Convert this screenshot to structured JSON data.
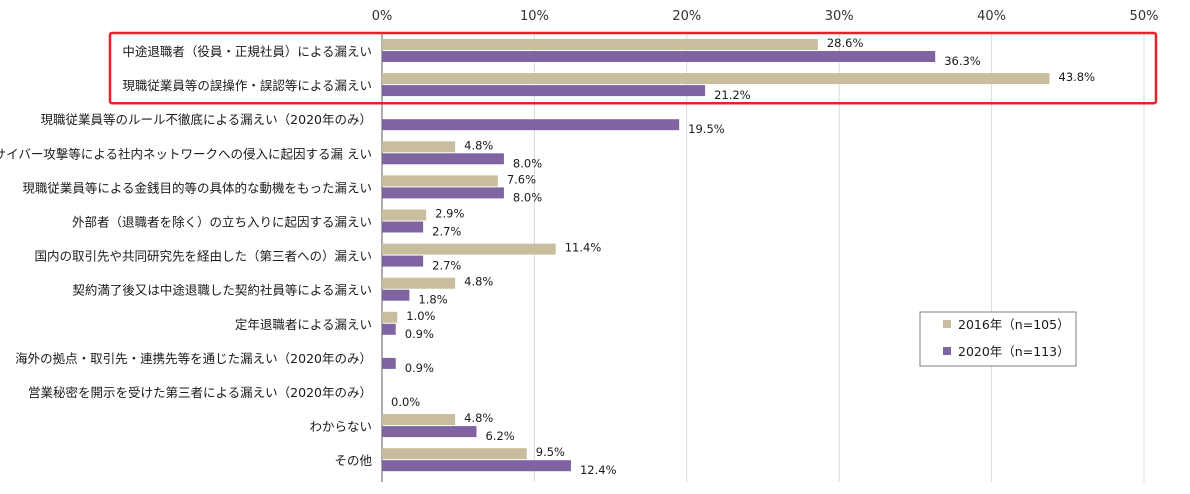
{
  "chart_data": {
    "type": "bar",
    "orientation": "horizontal",
    "categories": [
      "中途退職者（役員・正規社員）による漏えい",
      "現職従業員等の誤操作・誤認等による漏えい",
      "現職従業員等のルール不徹底による漏えい（2020年のみ）",
      "サイバー攻撃等による社内ネットワークへの侵入に起因する漏 えい",
      "現職従業員等による金銭目的等の具体的な動機をもった漏えい",
      "外部者（退職者を除く）の立ち入りに起因する漏えい",
      "国内の取引先や共同研究先を経由した（第三者への）漏えい",
      "契約満了後又は中途退職した契約社員等による漏えい",
      "定年退職者による漏えい",
      "海外の拠点・取引先・連携先等を通じた漏えい（2020年のみ）",
      "営業秘密を開示を受けた第三者による漏えい（2020年のみ）",
      "わからない",
      "その他"
    ],
    "series": [
      {
        "name": "2016年（n=105）",
        "color": "#c8bd9c",
        "values": [
          28.6,
          43.8,
          null,
          4.8,
          7.6,
          2.9,
          11.4,
          4.8,
          1.0,
          null,
          null,
          4.8,
          9.5
        ],
        "labels": [
          "28.6%",
          "43.8%",
          "",
          "4.8%",
          "7.6%",
          "2.9%",
          "11.4%",
          "4.8%",
          "1.0%",
          "",
          "",
          "4.8%",
          "9.5%"
        ]
      },
      {
        "name": "2020年（n=113）",
        "color": "#8064a2",
        "values": [
          36.3,
          21.2,
          19.5,
          8.0,
          8.0,
          2.7,
          2.7,
          1.8,
          0.9,
          0.9,
          0.0,
          6.2,
          12.4
        ],
        "labels": [
          "36.3%",
          "21.2%",
          "19.5%",
          "8.0%",
          "8.0%",
          "2.7%",
          "2.7%",
          "1.8%",
          "0.9%",
          "0.9%",
          "0.0%",
          "6.2%",
          "12.4%"
        ]
      }
    ],
    "xlim": [
      0,
      50
    ],
    "xticks": [
      "0%",
      "10%",
      "20%",
      "30%",
      "40%",
      "50%"
    ],
    "grid": true,
    "legend_position": "bottom-right",
    "highlight_rows": [
      0,
      1
    ],
    "highlight_color": "#e8202a"
  }
}
